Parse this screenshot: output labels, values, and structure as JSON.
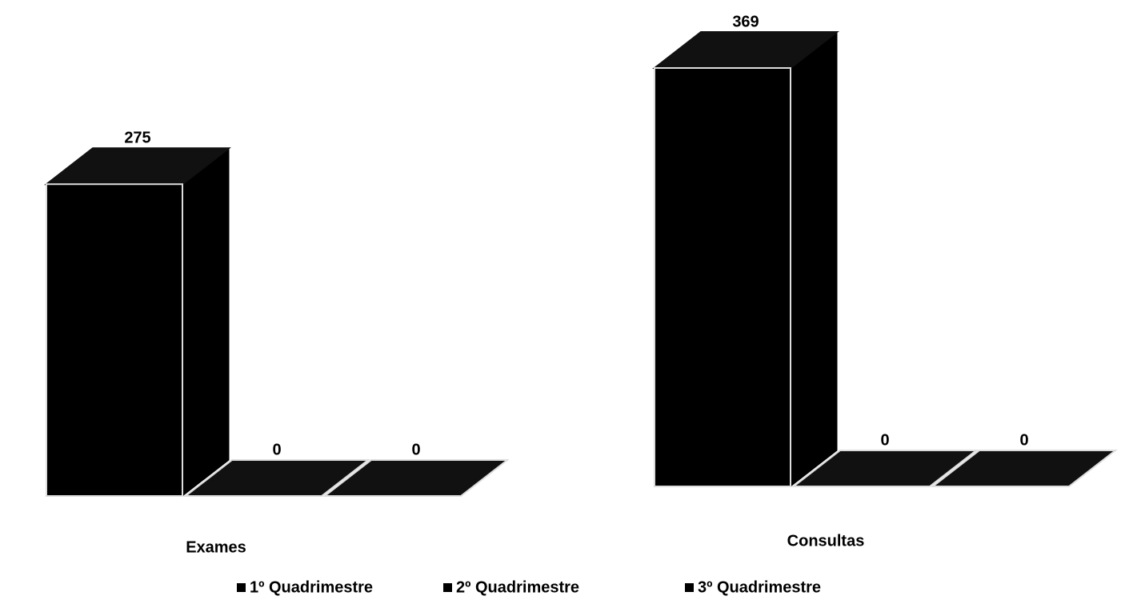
{
  "chart_data": {
    "type": "bar3d",
    "categories": [
      "Exames",
      "Consultas"
    ],
    "series": [
      {
        "name": "1º Quadrimestre",
        "color": "#000000",
        "values": [
          275,
          369
        ]
      },
      {
        "name": "2º Quadrimestre",
        "color": "#000000",
        "values": [
          0,
          0
        ]
      },
      {
        "name": "3º Quadrimestre",
        "color": "#000000",
        "values": [
          0,
          0
        ]
      }
    ],
    "legend": "bottom"
  }
}
